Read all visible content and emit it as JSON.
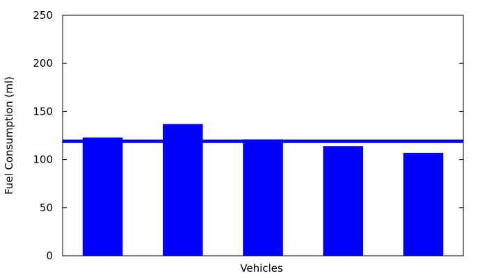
{
  "chart_data": {
    "type": "bar",
    "title": "",
    "xlabel": "Vehicles",
    "ylabel": "Fuel Consumption (ml)",
    "ylim": [
      0,
      250
    ],
    "yticks": [
      0,
      50,
      100,
      150,
      200,
      250
    ],
    "values": [
      123,
      137,
      121,
      114,
      107
    ],
    "reference_line": 119,
    "grid": false,
    "legend": "none",
    "colors": {
      "bar": "#0000ff",
      "reference_line": "#0000ff",
      "axis": "#000000"
    }
  }
}
